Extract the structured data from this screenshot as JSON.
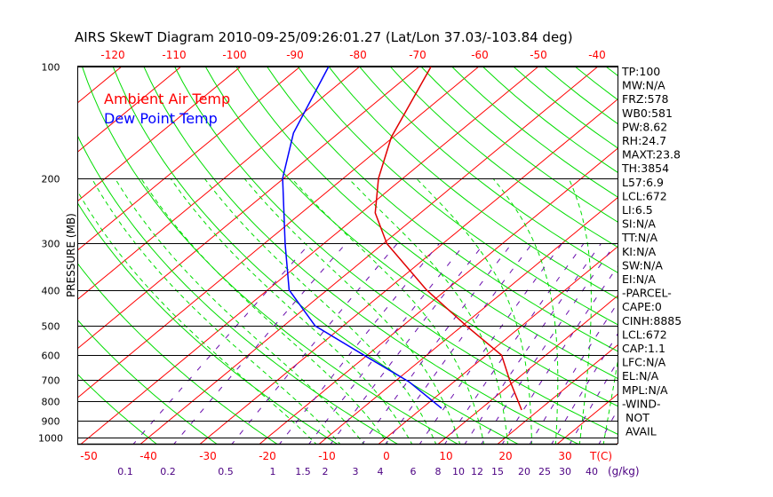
{
  "chart_data": {
    "type": "line",
    "subtype": "skew-t log-p",
    "title": "AIRS SkewT Diagram 2010-09-25/09:26:01.27 (Lat/Lon 37.03/-103.84 deg)",
    "ylabel": "PRESSURE (MB)",
    "xlabel": "T(C)",
    "mixing_ratio_label": "(g/kg)",
    "pressure_levels": [
      100,
      200,
      300,
      400,
      500,
      600,
      700,
      800,
      900,
      1000
    ],
    "ylim": [
      1000,
      100
    ],
    "bottom_temp_ticks": [
      -50,
      -40,
      -30,
      -20,
      -10,
      0,
      10,
      20,
      30
    ],
    "top_temp_ticks": [
      -120,
      -110,
      -100,
      -90,
      -80,
      -70,
      -60,
      -50,
      -40
    ],
    "mixing_ratio_ticks": [
      "0.1",
      "0.2",
      "0.5",
      "1",
      "1.5",
      "2",
      "3",
      "4",
      "6",
      "8",
      "10",
      "12",
      "15",
      "20",
      "25",
      "30",
      "40"
    ],
    "legend": [
      {
        "name": "Ambient Air Temp",
        "color": "#ff0000"
      },
      {
        "name": "Dew Point Temp",
        "color": "#0000ff"
      }
    ],
    "series": [
      {
        "name": "Ambient Air Temp",
        "color": "#e00000",
        "pressure": [
          843,
          700,
          600,
          500,
          400,
          300,
          248,
          200,
          155,
          100
        ],
        "temp": [
          17.1,
          9,
          2.6,
          -9.3,
          -23.3,
          -39.4,
          -47.6,
          -54.1,
          -60.3,
          -68
        ]
      },
      {
        "name": "Dew Point Temp",
        "color": "#0000ff",
        "pressure": [
          834,
          707,
          600,
          500,
          400,
          300,
          200,
          151,
          100
        ],
        "temp": [
          3.3,
          -7.6,
          -20.5,
          -34.7,
          -46.4,
          -56.5,
          -70.2,
          -77.6,
          -85.2
        ]
      }
    ]
  },
  "indices": [
    "TP:100",
    "MW:N/A",
    "FRZ:578",
    "WB0:581",
    "PW:8.62",
    "RH:24.7",
    "MAXT:23.8",
    "TH:3854",
    "L57:6.9",
    "LCL:672",
    "LI:6.5",
    "SI:N/A",
    "TT:N/A",
    "KI:N/A",
    "SW:N/A",
    "EI:N/A",
    "-PARCEL-",
    "CAPE:0",
    "CINH:8885",
    "LCL:672",
    "CAP:1.1",
    "LFC:N/A",
    "EL:N/A",
    "MPL:N/A",
    "-WIND-",
    "NOT",
    "AVAIL"
  ]
}
